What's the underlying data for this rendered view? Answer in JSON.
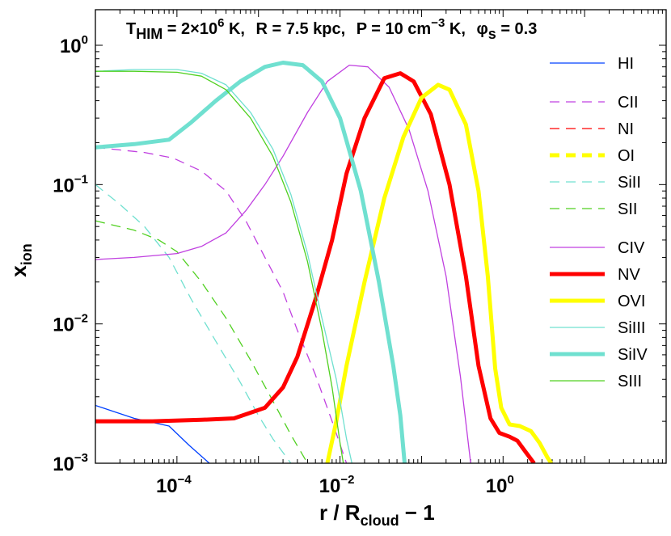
{
  "chart_data": {
    "type": "line",
    "title": {
      "T_main": "T",
      "T_sub": "HIM",
      "T_value": " = 2×10",
      "T_exp": "6",
      "T_unit": " K,",
      "R_text": "R = 7.5 kpc,",
      "P_text": "P = 10 cm",
      "P_exp": "−3",
      "P_unit": " K,",
      "phi_main": "φ",
      "phi_sub": "s",
      "phi_value": " = 0.3"
    },
    "xlabel": {
      "main": "r / R",
      "sub": "cloud",
      "tail": " − 1"
    },
    "ylabel": {
      "main": "x",
      "sub": "ion"
    },
    "xscale": "log",
    "yscale": "log",
    "xlim": [
      1e-05,
      100
    ],
    "ylim": [
      0.001,
      1.8
    ],
    "x_ticks": [
      {
        "value": 0.0001,
        "base": "10",
        "exp": "−4"
      },
      {
        "value": 0.01,
        "base": "10",
        "exp": "−2"
      },
      {
        "value": 1,
        "base": "10",
        "exp": "0"
      }
    ],
    "y_ticks": [
      {
        "value": 1,
        "base": "10",
        "exp": "0"
      },
      {
        "value": 0.1,
        "base": "10",
        "exp": "−1"
      },
      {
        "value": 0.01,
        "base": "10",
        "exp": "−2"
      },
      {
        "value": 0.001,
        "base": "10",
        "exp": "−3"
      }
    ],
    "legend_position": "right",
    "series": [
      {
        "name": "HI",
        "color": "#0040ff",
        "width": 1.3,
        "dash": "solid",
        "points": [
          [
            1e-05,
            0.0026
          ],
          [
            3e-05,
            0.0021
          ],
          [
            8e-05,
            0.00185
          ],
          [
            0.00014,
            0.00135
          ],
          [
            0.00025,
            0.001
          ]
        ]
      },
      {
        "name": "CII",
        "color": "#c040e0",
        "width": 1.3,
        "dash": "dashed",
        "points": [
          [
            1e-05,
            0.185
          ],
          [
            4e-05,
            0.17
          ],
          [
            9e-05,
            0.155
          ],
          [
            0.0002,
            0.125
          ],
          [
            0.0004,
            0.09
          ],
          [
            0.0007,
            0.055
          ],
          [
            0.0012,
            0.03
          ],
          [
            0.002,
            0.017
          ],
          [
            0.003,
            0.009
          ],
          [
            0.005,
            0.0043
          ],
          [
            0.008,
            0.002
          ],
          [
            0.012,
            0.001
          ]
        ]
      },
      {
        "name": "NI",
        "color": "#ff0000",
        "width": 1.3,
        "dash": "dashed",
        "points": []
      },
      {
        "name": "OI",
        "color": "#ffff00",
        "width": 5,
        "dash": "dashed",
        "points": []
      },
      {
        "name": "SiII",
        "color": "#70e0d0",
        "width": 1.3,
        "dash": "dashed",
        "points": [
          [
            1e-05,
            0.1
          ],
          [
            2e-05,
            0.072
          ],
          [
            4e-05,
            0.05
          ],
          [
            8e-05,
            0.03
          ],
          [
            0.00015,
            0.015
          ],
          [
            0.0003,
            0.0075
          ],
          [
            0.0006,
            0.0038
          ],
          [
            0.001,
            0.0022
          ],
          [
            0.0015,
            0.0015
          ],
          [
            0.0025,
            0.001
          ]
        ]
      },
      {
        "name": "SII",
        "color": "#50d020",
        "width": 1.3,
        "dash": "dashed",
        "points": [
          [
            1e-05,
            0.055
          ],
          [
            3e-05,
            0.047
          ],
          [
            6e-05,
            0.04
          ],
          [
            0.0001,
            0.033
          ],
          [
            0.0002,
            0.02
          ],
          [
            0.0004,
            0.011
          ],
          [
            0.0008,
            0.0055
          ],
          [
            0.0015,
            0.0028
          ],
          [
            0.0025,
            0.0016
          ],
          [
            0.004,
            0.001
          ]
        ]
      },
      {
        "name": "CIV",
        "color": "#c040e0",
        "width": 1.3,
        "dash": "solid",
        "points": [
          [
            1e-05,
            0.029
          ],
          [
            3e-05,
            0.03
          ],
          [
            0.0001,
            0.032
          ],
          [
            0.0002,
            0.036
          ],
          [
            0.0004,
            0.045
          ],
          [
            0.0007,
            0.065
          ],
          [
            0.0012,
            0.1
          ],
          [
            0.002,
            0.16
          ],
          [
            0.004,
            0.33
          ],
          [
            0.007,
            0.55
          ],
          [
            0.013,
            0.72
          ],
          [
            0.022,
            0.7
          ],
          [
            0.04,
            0.5
          ],
          [
            0.07,
            0.25
          ],
          [
            0.12,
            0.09
          ],
          [
            0.2,
            0.022
          ],
          [
            0.3,
            0.0042
          ],
          [
            0.4,
            0.001
          ]
        ]
      },
      {
        "name": "NV",
        "color": "#ff0000",
        "width": 5,
        "dash": "solid",
        "points": [
          [
            1e-05,
            0.002
          ],
          [
            5e-05,
            0.002
          ],
          [
            0.0002,
            0.00205
          ],
          [
            0.0005,
            0.0021
          ],
          [
            0.0012,
            0.0025
          ],
          [
            0.002,
            0.0035
          ],
          [
            0.003,
            0.0058
          ],
          [
            0.005,
            0.015
          ],
          [
            0.008,
            0.04
          ],
          [
            0.012,
            0.12
          ],
          [
            0.02,
            0.3
          ],
          [
            0.035,
            0.58
          ],
          [
            0.055,
            0.63
          ],
          [
            0.08,
            0.55
          ],
          [
            0.13,
            0.32
          ],
          [
            0.22,
            0.1
          ],
          [
            0.35,
            0.022
          ],
          [
            0.5,
            0.005
          ],
          [
            0.7,
            0.0021
          ],
          [
            0.9,
            0.00165
          ],
          [
            1.2,
            0.00155
          ],
          [
            1.5,
            0.00145
          ],
          [
            1.9,
            0.0012
          ],
          [
            2.4,
            0.001
          ]
        ]
      },
      {
        "name": "OVI",
        "color": "#ffff00",
        "width": 5,
        "dash": "solid",
        "points": [
          [
            0.007,
            0.001
          ],
          [
            0.009,
            0.002
          ],
          [
            0.012,
            0.005
          ],
          [
            0.02,
            0.02
          ],
          [
            0.035,
            0.08
          ],
          [
            0.06,
            0.22
          ],
          [
            0.1,
            0.42
          ],
          [
            0.16,
            0.52
          ],
          [
            0.22,
            0.48
          ],
          [
            0.35,
            0.27
          ],
          [
            0.5,
            0.09
          ],
          [
            0.65,
            0.022
          ],
          [
            0.8,
            0.0048
          ],
          [
            0.95,
            0.0025
          ],
          [
            1.2,
            0.0019
          ],
          [
            1.6,
            0.00185
          ],
          [
            2.2,
            0.0017
          ],
          [
            2.8,
            0.0014
          ],
          [
            3.5,
            0.0011
          ],
          [
            3.9,
            0.001
          ]
        ]
      },
      {
        "name": "SiIII",
        "color": "#70e0d0",
        "width": 1.3,
        "dash": "solid",
        "points": [
          [
            1e-05,
            0.65
          ],
          [
            3e-05,
            0.67
          ],
          [
            0.0001,
            0.67
          ],
          [
            0.0002,
            0.63
          ],
          [
            0.0004,
            0.52
          ],
          [
            0.0008,
            0.33
          ],
          [
            0.0015,
            0.18
          ],
          [
            0.0025,
            0.085
          ],
          [
            0.004,
            0.032
          ],
          [
            0.006,
            0.011
          ],
          [
            0.009,
            0.004
          ],
          [
            0.012,
            0.0015
          ],
          [
            0.014,
            0.001
          ]
        ]
      },
      {
        "name": "SiIV",
        "color": "#70e0d0",
        "width": 5,
        "dash": "solid",
        "points": [
          [
            1e-05,
            0.185
          ],
          [
            3e-05,
            0.195
          ],
          [
            8e-05,
            0.21
          ],
          [
            0.00015,
            0.28
          ],
          [
            0.0003,
            0.4
          ],
          [
            0.0006,
            0.55
          ],
          [
            0.0012,
            0.7
          ],
          [
            0.002,
            0.75
          ],
          [
            0.0035,
            0.72
          ],
          [
            0.006,
            0.55
          ],
          [
            0.01,
            0.3
          ],
          [
            0.018,
            0.09
          ],
          [
            0.03,
            0.02
          ],
          [
            0.045,
            0.005
          ],
          [
            0.055,
            0.0022
          ],
          [
            0.062,
            0.001
          ]
        ]
      },
      {
        "name": "SIII",
        "color": "#50d020",
        "width": 1.3,
        "dash": "solid",
        "points": [
          [
            1e-05,
            0.65
          ],
          [
            3e-05,
            0.65
          ],
          [
            0.0001,
            0.64
          ],
          [
            0.0002,
            0.6
          ],
          [
            0.0004,
            0.48
          ],
          [
            0.0008,
            0.3
          ],
          [
            0.0015,
            0.16
          ],
          [
            0.0025,
            0.075
          ],
          [
            0.004,
            0.028
          ],
          [
            0.006,
            0.009
          ],
          [
            0.008,
            0.0035
          ],
          [
            0.01,
            0.0014
          ],
          [
            0.011,
            0.001
          ]
        ]
      }
    ]
  }
}
